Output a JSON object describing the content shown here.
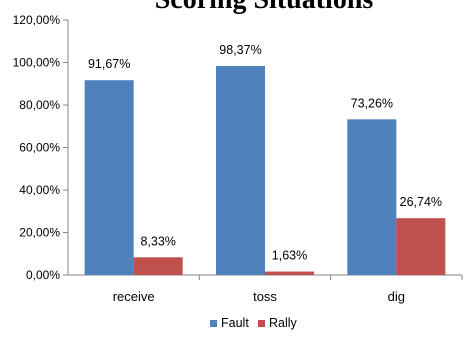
{
  "chart_data": {
    "type": "bar",
    "title": "Scoring Situations",
    "xlabel": "",
    "ylabel": "",
    "categories": [
      "receive",
      "toss",
      "dig"
    ],
    "series": [
      {
        "name": "Fault",
        "color": "#4f81bd",
        "values": [
          91.67,
          98.37,
          73.26
        ],
        "labels": [
          "91,67%",
          "98,37%",
          "73,26%"
        ]
      },
      {
        "name": "Rally",
        "color": "#c0504d",
        "values": [
          8.33,
          1.63,
          26.74
        ],
        "labels": [
          "8,33%",
          "1,63%",
          "26,74%"
        ]
      }
    ],
    "ylim": [
      0,
      120
    ],
    "yticks": [
      0,
      20,
      40,
      60,
      80,
      100,
      120
    ],
    "ytick_labels": [
      "0,00%",
      "20,00%",
      "40,00%",
      "60,00%",
      "80,00%",
      "100,00%",
      "120,00%"
    ],
    "grid": false,
    "legend": "bottom"
  }
}
